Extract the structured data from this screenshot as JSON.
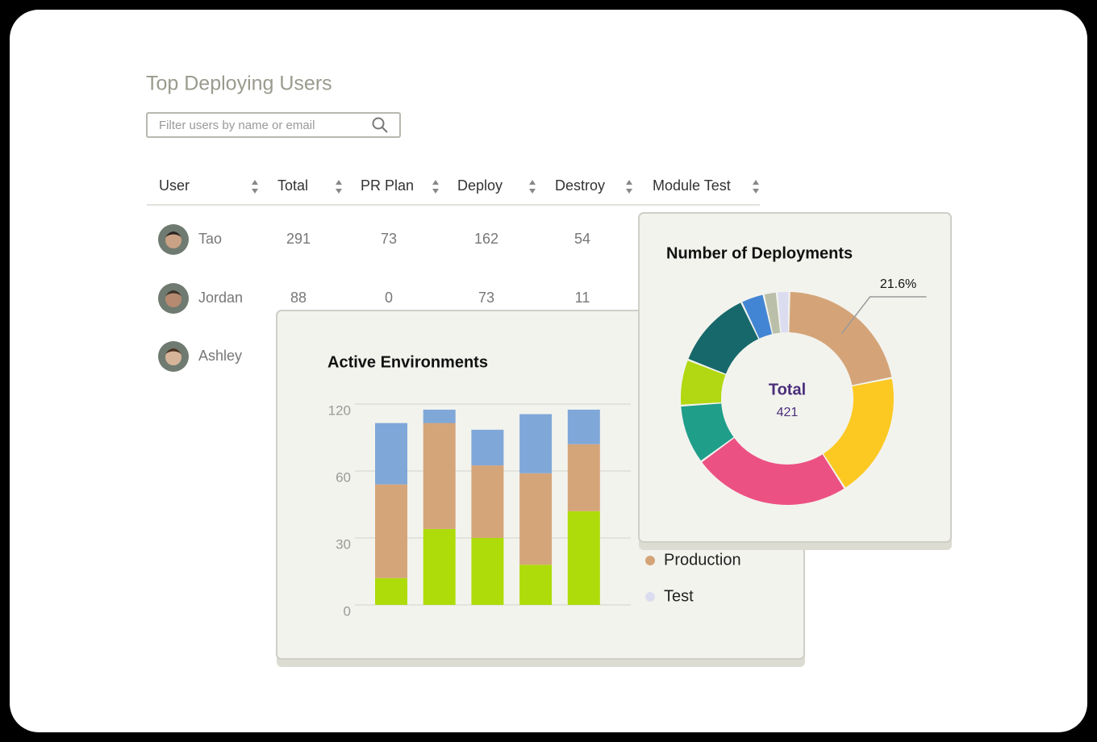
{
  "title": "Top Deploying Users",
  "search_placeholder": "Filter users by name or email",
  "table": {
    "columns": [
      "User",
      "Total",
      "PR Plan",
      "Deploy",
      "Destroy",
      "Module Test"
    ],
    "rows": [
      [
        "Tao",
        291,
        73,
        162,
        54
      ],
      [
        "Jordan",
        88,
        0,
        73,
        11
      ],
      [
        "Ashley"
      ]
    ]
  },
  "chart_data": [
    {
      "type": "bar",
      "stacked": true,
      "title": "Active Environments",
      "categories": [
        null,
        null,
        null,
        null,
        null
      ],
      "series": [
        {
          "color": "#aedc0a",
          "values": [
            12,
            34,
            30,
            18,
            42
          ]
        },
        {
          "color": "#d5a57a",
          "values": [
            42,
            69,
            35,
            41,
            42
          ]
        },
        {
          "color": "#7fa8d8",
          "values": [
            49,
            12,
            32,
            52,
            31
          ]
        }
      ],
      "ylim": [
        0,
        120
      ],
      "yticks": [
        0,
        30,
        60,
        120
      ],
      "grid": true,
      "legend": [
        {
          "name": "Production",
          "color": "#d4a478"
        },
        {
          "name": "Test",
          "color": "#dcdcf0"
        }
      ]
    },
    {
      "type": "donut",
      "title": "Number of Deployments",
      "center_label": "Total",
      "center_value": 421,
      "values": [
        21.6,
        19,
        24,
        9,
        7,
        12,
        3.5,
        2,
        1.9
      ],
      "value_labels": [
        "21.6%",
        null,
        null,
        null,
        null,
        null,
        null,
        null,
        null
      ],
      "colors": [
        "#d4a478",
        "#fcc923",
        "#ec5183",
        "#1f9e8a",
        "#b1d812",
        "#17686a",
        "#4285d4",
        "#b9bfa8",
        "#dcdcf0"
      ]
    }
  ]
}
